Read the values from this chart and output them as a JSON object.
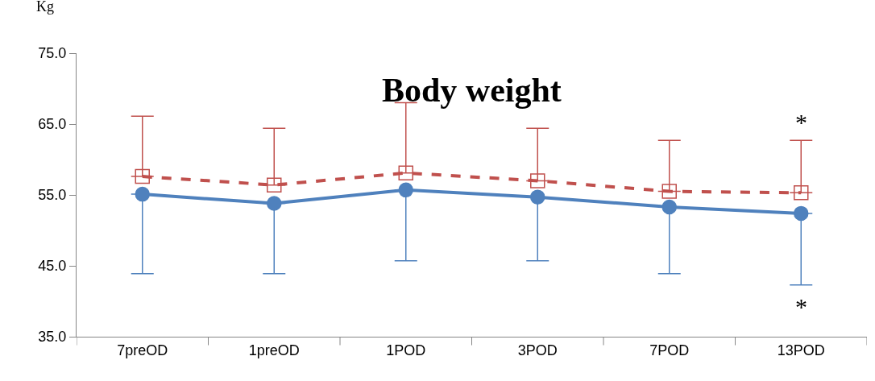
{
  "chart_data": {
    "type": "line",
    "title": "Body weight",
    "ylabel": "Kg",
    "categories": [
      "7preOD",
      "1preOD",
      "1POD",
      "3POD",
      "7POD",
      "13POD"
    ],
    "series": [
      {
        "color": "#4f81bd",
        "marker": "circle",
        "line_style": "solid",
        "values": [
          55.1,
          53.8,
          55.7,
          54.7,
          53.3,
          52.4
        ],
        "errors": [
          [
            43.9,
            55.1
          ],
          [
            43.9,
            53.8
          ],
          [
            45.7,
            55.7
          ],
          [
            45.7,
            54.7
          ],
          [
            43.9,
            53.3
          ],
          [
            42.3,
            52.4
          ]
        ]
      },
      {
        "color": "#c0504d",
        "marker": "square",
        "line_style": "dashed",
        "values": [
          57.6,
          56.4,
          58.1,
          57.0,
          55.5,
          55.3
        ],
        "errors": [
          [
            57.6,
            66.1
          ],
          [
            56.4,
            64.4
          ],
          [
            58.1,
            68.0
          ],
          [
            57.0,
            64.4
          ],
          [
            55.5,
            62.7
          ],
          [
            55.3,
            62.7
          ]
        ]
      }
    ],
    "ylim": [
      35,
      75
    ],
    "yticks": [
      {
        "value": 35,
        "label": "35.0"
      },
      {
        "value": 45,
        "label": "45.0"
      },
      {
        "value": 55,
        "label": "55.0"
      },
      {
        "value": 65,
        "label": "65.0"
      },
      {
        "value": 75,
        "label": "75.0"
      }
    ],
    "grid": false,
    "annotations": [
      {
        "text": "*",
        "x": "13POD",
        "y": 62.7
      },
      {
        "text": "*",
        "x": "13POD",
        "y": 42.3
      }
    ]
  }
}
